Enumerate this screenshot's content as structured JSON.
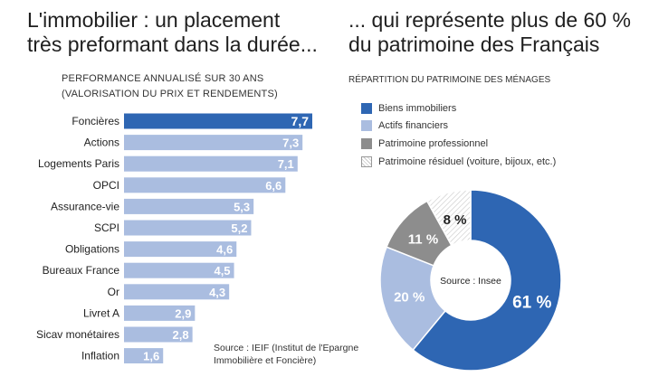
{
  "left": {
    "title_line1": "L'immobilier : un placement",
    "title_line2": "très preformant dans la durée...",
    "subtitle_line1": "PERFORMANCE ANNUALISÉ SUR 30 ANS",
    "subtitle_line2": "(VALORISATION DU PRIX ET RENDEMENTS)",
    "source_line1": "Source : IEIF (Institut de l'Epargne",
    "source_line2": "Immobilière et Foncière)"
  },
  "right": {
    "title_line1": "... qui représente plus de 60 %",
    "title_line2": "du patrimoine des Français",
    "subtitle": "RÉPARTITION DU PATRIMOINE DES MÉNAGES",
    "center_label": "Source : Insee"
  },
  "colors": {
    "highlight": "#2e66b3",
    "bar": "#aabde0",
    "gray": "#8d8d8d"
  },
  "chart_data": [
    {
      "type": "bar",
      "orientation": "horizontal",
      "categories": [
        "Foncières",
        "Actions",
        "Logements Paris",
        "OPCI",
        "Assurance-vie",
        "SCPI",
        "Obligations",
        "Bureaux France",
        "Or",
        "Livret A",
        "Sicav monétaires",
        "Inflation"
      ],
      "values": [
        7.7,
        7.3,
        7.1,
        6.6,
        5.3,
        5.2,
        4.6,
        4.5,
        4.3,
        2.9,
        2.8,
        1.6
      ],
      "value_labels": [
        "7,7",
        "7,3",
        "7,1",
        "6,6",
        "5,3",
        "5,2",
        "4,6",
        "4,5",
        "4,3",
        "2,9",
        "2,8",
        "1,6"
      ],
      "highlight_index": 0,
      "xlim": [
        0,
        7.7
      ]
    },
    {
      "type": "pie",
      "variant": "donut",
      "labels": [
        "Biens immobiliers",
        "Actifs financiers",
        "Patrimoine professionnel",
        "Patrimoine résiduel (voiture, bijoux, etc.)"
      ],
      "values": [
        61,
        20,
        11,
        8
      ],
      "value_labels": [
        "61 %",
        "20 %",
        "11 %",
        "8 %"
      ],
      "colors": [
        "#2e66b3",
        "#aabde0",
        "#8d8d8d",
        "#ffffff"
      ],
      "legend_position": "top"
    }
  ]
}
